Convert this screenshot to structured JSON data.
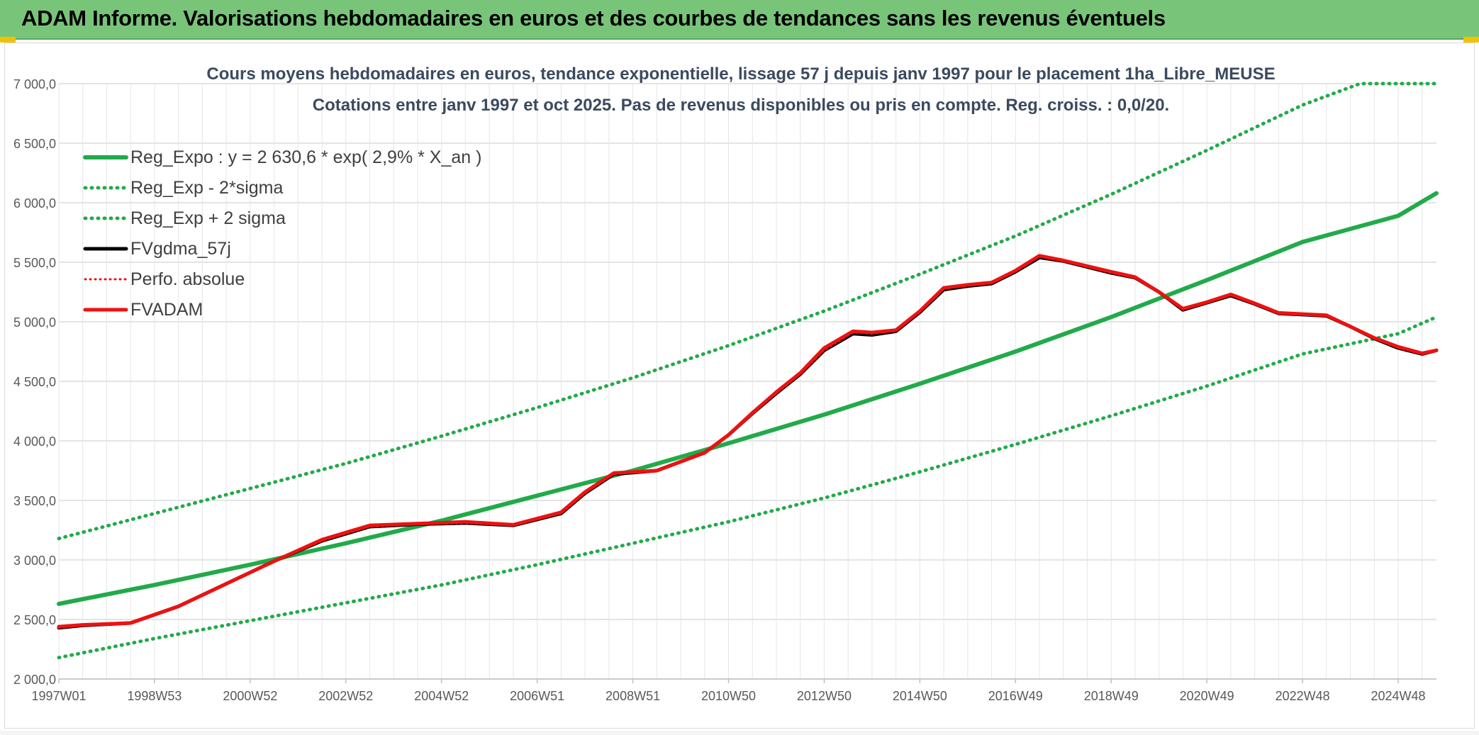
{
  "header": {
    "title": "ADAM Informe. Valorisations hebdomadaires en euros et des courbes de tendances sans les revenus éventuels"
  },
  "colors": {
    "header_bg": "#78c57a",
    "reg_expo": "#22aa4a",
    "bands": "#22aa4a",
    "fvgdma": "#000000",
    "fvadam": "#ee1111",
    "perfo": "#ee1111",
    "grid": "#dcdcdc"
  },
  "chart_data": {
    "type": "line",
    "title_line1": "Cours moyens hebdomadaires en euros, tendance exponentielle, lissage 57 j depuis janv 1997 pour le placement 1ha_Libre_MEUSE",
    "title_line2": "Cotations entre janv 1997 et oct 2025. Pas de revenus disponibles ou pris en compte. Reg. croiss. : 0,0/20.",
    "xlabel": "",
    "ylabel": "",
    "x_range": [
      1997.0,
      2025.8
    ],
    "ylim": [
      2000,
      7000
    ],
    "y_ticks": [
      "2 000,0",
      "2 500,0",
      "3 000,0",
      "3 500,0",
      "4 000,0",
      "4 500,0",
      "5 000,0",
      "5 500,0",
      "6 000,0",
      "6 500,0",
      "7 000,0"
    ],
    "x_ticks": [
      {
        "label": "1997W01",
        "x": 1997.0
      },
      {
        "label": "1998W53",
        "x": 1999.0
      },
      {
        "label": "2000W52",
        "x": 2001.0
      },
      {
        "label": "2002W52",
        "x": 2003.0
      },
      {
        "label": "2004W52",
        "x": 2005.0
      },
      {
        "label": "2006W51",
        "x": 2007.0
      },
      {
        "label": "2008W51",
        "x": 2009.0
      },
      {
        "label": "2010W50",
        "x": 2011.0
      },
      {
        "label": "2012W50",
        "x": 2013.0
      },
      {
        "label": "2014W50",
        "x": 2015.0
      },
      {
        "label": "2016W49",
        "x": 2017.0
      },
      {
        "label": "2018W49",
        "x": 2019.0
      },
      {
        "label": "2020W49",
        "x": 2021.0
      },
      {
        "label": "2022W48",
        "x": 2023.0
      },
      {
        "label": "2024W48",
        "x": 2025.0
      }
    ],
    "grid": true,
    "legend_position": "top-left",
    "legend": [
      {
        "label": "Reg_Expo : y = 2 630,6 * exp( 2,9% *  X_an )",
        "style": "solid-thick-green"
      },
      {
        "label": "Reg_Exp - 2*sigma",
        "style": "dotted-green"
      },
      {
        "label": "Reg_Exp + 2 sigma",
        "style": "dotted-green"
      },
      {
        "label": "FVgdma_57j",
        "style": "solid-black"
      },
      {
        "label": "Perfo. absolue",
        "style": "dotted-red"
      },
      {
        "label": "FVADAM",
        "style": "solid-thick-red"
      }
    ],
    "series": [
      {
        "name": "Reg_Expo : y = 2 630,6 * exp( 2,9% *  X_an )",
        "x": [
          1997.0,
          1999.0,
          2001.0,
          2003.0,
          2005.0,
          2007.0,
          2009.0,
          2011.0,
          2013.0,
          2015.0,
          2017.0,
          2019.0,
          2021.0,
          2023.0,
          2025.0,
          2025.8
        ],
        "values": [
          2631,
          2790,
          2960,
          3140,
          3330,
          3540,
          3750,
          3980,
          4220,
          4480,
          4750,
          5040,
          5350,
          5670,
          5890,
          6080
        ]
      },
      {
        "name": "Reg_Exp - 2*sigma",
        "x": [
          1997.0,
          1999.0,
          2001.0,
          2003.0,
          2005.0,
          2007.0,
          2009.0,
          2011.0,
          2013.0,
          2015.0,
          2017.0,
          2019.0,
          2021.0,
          2023.0,
          2025.0,
          2025.8
        ],
        "values": [
          2180,
          2340,
          2490,
          2640,
          2790,
          2960,
          3140,
          3320,
          3520,
          3740,
          3970,
          4210,
          4460,
          4730,
          4900,
          5040
        ]
      },
      {
        "name": "Reg_Exp + 2 sigma",
        "x": [
          1997.0,
          1999.0,
          2001.0,
          2003.0,
          2005.0,
          2007.0,
          2009.0,
          2011.0,
          2013.0,
          2015.0,
          2017.0,
          2019.0,
          2021.0,
          2023.0,
          2024.2,
          2025.8
        ],
        "values": [
          3180,
          3390,
          3600,
          3810,
          4040,
          4280,
          4530,
          4800,
          5090,
          5400,
          5720,
          6070,
          6440,
          6820,
          7000,
          7000
        ]
      },
      {
        "name": "FVgdma_57j",
        "x": [
          1997.0,
          1997.5,
          1998.5,
          1999.5,
          2000.5,
          2001.5,
          2002.5,
          2003.5,
          2004.5,
          2005.5,
          2006.5,
          2007.5,
          2008.0,
          2008.6,
          2009.5,
          2010.5,
          2011.0,
          2011.5,
          2012.0,
          2012.5,
          2013.0,
          2013.6,
          2014.0,
          2014.5,
          2015.0,
          2015.5,
          2016.0,
          2016.5,
          2017.0,
          2017.5,
          2018.0,
          2019.0,
          2019.5,
          2020.0,
          2020.5,
          2021.0,
          2021.5,
          2022.0,
          2022.5,
          2023.0,
          2023.5,
          2024.0,
          2024.5,
          2025.0,
          2025.5,
          2025.8
        ],
        "values": [
          2430,
          2450,
          2470,
          2610,
          2800,
          2990,
          3160,
          3280,
          3300,
          3310,
          3290,
          3390,
          3560,
          3720,
          3750,
          3900,
          4050,
          4230,
          4400,
          4560,
          4760,
          4900,
          4890,
          4920,
          5080,
          5270,
          5300,
          5320,
          5420,
          5540,
          5510,
          5410,
          5370,
          5250,
          5100,
          5160,
          5220,
          5150,
          5070,
          5060,
          5050,
          4960,
          4860,
          4780,
          4730,
          4760
        ]
      },
      {
        "name": "Perfo. absolue",
        "x": [
          1997.0,
          1997.5,
          1998.5,
          1999.5,
          2000.5,
          2001.5,
          2002.5,
          2003.5,
          2004.5,
          2005.5,
          2006.5,
          2007.5,
          2008.0,
          2008.6,
          2009.5,
          2010.5,
          2011.0,
          2011.5,
          2012.0,
          2012.5,
          2013.0,
          2013.6,
          2014.0,
          2014.5,
          2015.0,
          2015.5,
          2016.0,
          2016.5,
          2017.0,
          2017.5,
          2018.0,
          2019.0,
          2019.5,
          2020.0,
          2020.5,
          2021.0,
          2021.5,
          2022.0,
          2022.5,
          2023.0,
          2023.5,
          2024.0,
          2024.5,
          2025.0,
          2025.5,
          2025.8
        ],
        "values": [
          2430,
          2450,
          2470,
          2610,
          2800,
          2990,
          3160,
          3280,
          3300,
          3310,
          3290,
          3390,
          3560,
          3720,
          3750,
          3900,
          4050,
          4230,
          4400,
          4560,
          4760,
          4910,
          4900,
          4930,
          5090,
          5280,
          5310,
          5330,
          5430,
          5550,
          5510,
          5410,
          5370,
          5250,
          5100,
          5160,
          5230,
          5150,
          5070,
          5060,
          5050,
          4960,
          4860,
          4780,
          4730,
          4760
        ]
      },
      {
        "name": "FVADAM",
        "x": [
          1997.0,
          1997.5,
          1998.5,
          1999.5,
          2000.5,
          2001.5,
          2002.5,
          2003.5,
          2004.5,
          2005.5,
          2006.5,
          2007.5,
          2008.0,
          2008.6,
          2009.5,
          2010.5,
          2011.0,
          2011.5,
          2012.0,
          2012.5,
          2013.0,
          2013.6,
          2014.0,
          2014.5,
          2015.0,
          2015.5,
          2016.0,
          2016.5,
          2017.0,
          2017.5,
          2018.0,
          2019.0,
          2019.5,
          2020.0,
          2020.5,
          2021.0,
          2021.5,
          2022.0,
          2022.5,
          2023.0,
          2023.5,
          2024.0,
          2024.5,
          2025.0,
          2025.5,
          2025.8
        ],
        "values": [
          2440,
          2455,
          2470,
          2610,
          2800,
          2990,
          3170,
          3290,
          3305,
          3320,
          3295,
          3400,
          3570,
          3730,
          3750,
          3900,
          4050,
          4235,
          4410,
          4570,
          4780,
          4920,
          4910,
          4930,
          5090,
          5285,
          5310,
          5330,
          5430,
          5555,
          5515,
          5420,
          5375,
          5250,
          5110,
          5165,
          5230,
          5155,
          5075,
          5065,
          5055,
          4960,
          4865,
          4790,
          4735,
          4760
        ]
      }
    ]
  }
}
